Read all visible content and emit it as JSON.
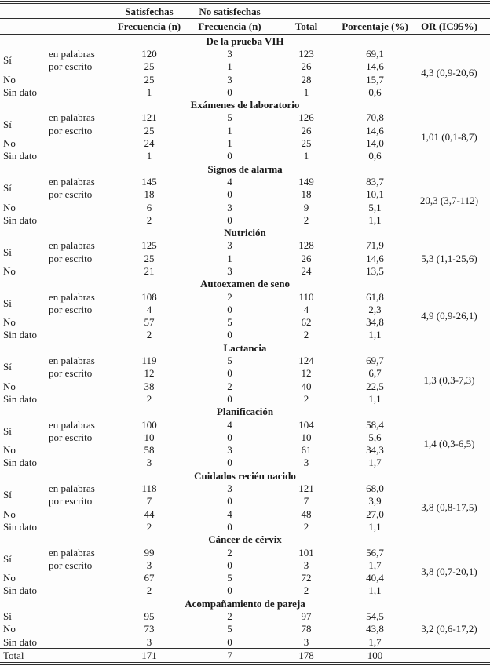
{
  "table": {
    "header": {
      "group_satisfechas": "Satisfechas",
      "group_no_satisfechas": "No satisfechas",
      "col_freq_sat": "Frecuencia (n)",
      "col_freq_nosat": "Frecuencia (n)",
      "col_total": "Total",
      "col_porcentaje": "Porcentaje (%)",
      "col_or": "OR (IC95%)"
    },
    "sections": [
      {
        "title": "De la prueba VIH",
        "or": "4,3 (0,9-20,6)",
        "rows": [
          {
            "label": "Sí",
            "sub": "en palabras",
            "sat": "120",
            "nosat": "3",
            "total": "123",
            "pct": "69,1"
          },
          {
            "sub": "por escrito",
            "sat": "25",
            "nosat": "1",
            "total": "26",
            "pct": "14,6"
          },
          {
            "label": "No",
            "sub": "",
            "sat": "25",
            "nosat": "3",
            "total": "28",
            "pct": "15,7"
          },
          {
            "label": "Sin dato",
            "sub": "",
            "sat": "1",
            "nosat": "0",
            "total": "1",
            "pct": "0,6"
          }
        ]
      },
      {
        "title": "Exámenes de laboratorio",
        "or": "1,01 (0,1-8,7)",
        "rows": [
          {
            "label": "Sí",
            "sub": "en palabras",
            "sat": "121",
            "nosat": "5",
            "total": "126",
            "pct": "70,8"
          },
          {
            "sub": "por escrito",
            "sat": "25",
            "nosat": "1",
            "total": "26",
            "pct": "14,6"
          },
          {
            "label": "No",
            "sub": "",
            "sat": "24",
            "nosat": "1",
            "total": "25",
            "pct": "14,0"
          },
          {
            "label": "Sin dato",
            "sub": "",
            "sat": "1",
            "nosat": "0",
            "total": "1",
            "pct": "0,6"
          }
        ]
      },
      {
        "title": "Signos de alarma",
        "or": "20,3 (3,7-112)",
        "rows": [
          {
            "label": "Sí",
            "sub": "en palabras",
            "sat": "145",
            "nosat": "4",
            "total": "149",
            "pct": "83,7"
          },
          {
            "sub": "por escrito",
            "sat": "18",
            "nosat": "0",
            "total": "18",
            "pct": "10,1"
          },
          {
            "label": "No",
            "sub": "",
            "sat": "6",
            "nosat": "3",
            "total": "9",
            "pct": "5,1"
          },
          {
            "label": "Sin dato",
            "sub": "",
            "sat": "2",
            "nosat": "0",
            "total": "2",
            "pct": "1,1"
          }
        ]
      },
      {
        "title": "Nutrición",
        "or": "5,3 (1,1-25,6)",
        "rows": [
          {
            "label": "Sí",
            "sub": "en palabras",
            "sat": "125",
            "nosat": "3",
            "total": "128",
            "pct": "71,9"
          },
          {
            "sub": "por escrito",
            "sat": "25",
            "nosat": "1",
            "total": "26",
            "pct": "14,6"
          },
          {
            "label": "No",
            "sub": "",
            "sat": "21",
            "nosat": "3",
            "total": "24",
            "pct": "13,5"
          }
        ]
      },
      {
        "title": "Autoexamen de seno",
        "or": "4,9 (0,9-26,1)",
        "rows": [
          {
            "label": "Sí",
            "sub": "en palabras",
            "sat": "108",
            "nosat": "2",
            "total": "110",
            "pct": "61,8"
          },
          {
            "sub": "por escrito",
            "sat": "4",
            "nosat": "0",
            "total": "4",
            "pct": "2,3"
          },
          {
            "label": "No",
            "sub": "",
            "sat": "57",
            "nosat": "5",
            "total": "62",
            "pct": "34,8"
          },
          {
            "label": "Sin dato",
            "sub": "",
            "sat": "2",
            "nosat": "0",
            "total": "2",
            "pct": "1,1"
          }
        ]
      },
      {
        "title": "Lactancia",
        "or": "1,3 (0,3-7,3)",
        "rows": [
          {
            "label": "Sí",
            "sub": "en palabras",
            "sat": "119",
            "nosat": "5",
            "total": "124",
            "pct": "69,7"
          },
          {
            "sub": "por escrito",
            "sat": "12",
            "nosat": "0",
            "total": "12",
            "pct": "6,7"
          },
          {
            "label": "No",
            "sub": "",
            "sat": "38",
            "nosat": "2",
            "total": "40",
            "pct": "22,5"
          },
          {
            "label": "Sin dato",
            "sub": "",
            "sat": "2",
            "nosat": "0",
            "total": "2",
            "pct": "1,1"
          }
        ]
      },
      {
        "title": "Planificación",
        "or": "1,4 (0,3-6,5)",
        "rows": [
          {
            "label": "Sí",
            "sub": "en palabras",
            "sat": "100",
            "nosat": "4",
            "total": "104",
            "pct": "58,4"
          },
          {
            "sub": "por escrito",
            "sat": "10",
            "nosat": "0",
            "total": "10",
            "pct": "5,6"
          },
          {
            "label": "No",
            "sub": "",
            "sat": "58",
            "nosat": "3",
            "total": "61",
            "pct": "34,3"
          },
          {
            "label": "Sin dato",
            "sub": "",
            "sat": "3",
            "nosat": "0",
            "total": "3",
            "pct": "1,7"
          }
        ]
      },
      {
        "title": "Cuidados recién nacido",
        "or": "3,8 (0,8-17,5)",
        "rows": [
          {
            "label": "Sí",
            "sub": "en palabras",
            "sat": "118",
            "nosat": "3",
            "total": "121",
            "pct": "68,0"
          },
          {
            "sub": "por escrito",
            "sat": "7",
            "nosat": "0",
            "total": "7",
            "pct": "3,9"
          },
          {
            "label": "No",
            "sub": "",
            "sat": "44",
            "nosat": "4",
            "total": "48",
            "pct": "27,0"
          },
          {
            "label": "Sin dato",
            "sub": "",
            "sat": "2",
            "nosat": "0",
            "total": "2",
            "pct": "1,1"
          }
        ]
      },
      {
        "title": "Cáncer de cérvix",
        "or": "3,8 (0,7-20,1)",
        "rows": [
          {
            "label": "Sí",
            "sub": "en palabras",
            "sat": "99",
            "nosat": "2",
            "total": "101",
            "pct": "56,7"
          },
          {
            "sub": "por escrito",
            "sat": "3",
            "nosat": "0",
            "total": "3",
            "pct": "1,7"
          },
          {
            "label": "No",
            "sub": "",
            "sat": "67",
            "nosat": "5",
            "total": "72",
            "pct": "40,4"
          },
          {
            "label": "Sin dato",
            "sub": "",
            "sat": "2",
            "nosat": "0",
            "total": "2",
            "pct": "1,1"
          }
        ]
      },
      {
        "title": "Acompañamiento de pareja",
        "or": "3,2 (0,6-17,2)",
        "rows": [
          {
            "label": "Sí",
            "sub": "",
            "sat": "95",
            "nosat": "2",
            "total": "97",
            "pct": "54,5"
          },
          {
            "label": "No",
            "sub": "",
            "sat": "73",
            "nosat": "5",
            "total": "78",
            "pct": "43,8"
          },
          {
            "label": "Sin dato",
            "sub": "",
            "sat": "3",
            "nosat": "0",
            "total": "3",
            "pct": "1,7"
          }
        ]
      }
    ],
    "total_row": {
      "label": "Total",
      "sat": "171",
      "nosat": "7",
      "total": "178",
      "pct": "100",
      "or": ""
    }
  }
}
